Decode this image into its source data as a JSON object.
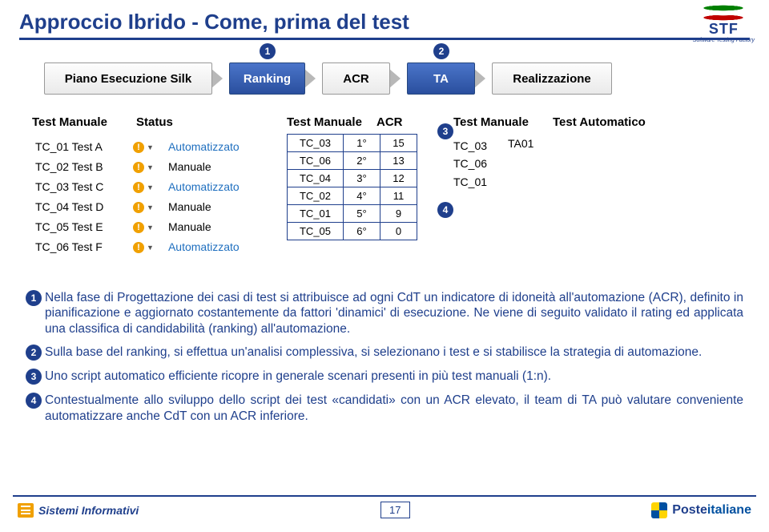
{
  "title": "Approccio Ibrido - Come, prima del test",
  "flow": {
    "silk": "Piano Esecuzione Silk",
    "ranking": "Ranking",
    "acr": "ACR",
    "ta": "TA",
    "real": "Realizzazione",
    "badge1": "1",
    "badge2": "2"
  },
  "col1": {
    "h1": "Test Manuale",
    "h2": "Status",
    "rows": [
      {
        "tc": "TC_01 Test A",
        "status": "Automatizzato",
        "auto": true
      },
      {
        "tc": "TC_02 Test B",
        "status": "Manuale",
        "auto": false
      },
      {
        "tc": "TC_03 Test C",
        "status": "Automatizzato",
        "auto": true
      },
      {
        "tc": "TC_04 Test D",
        "status": "Manuale",
        "auto": false
      },
      {
        "tc": "TC_05 Test E",
        "status": "Manuale",
        "auto": false
      },
      {
        "tc": "TC_06 Test F",
        "status": "Automatizzato",
        "auto": true
      }
    ]
  },
  "col2": {
    "h1": "Test Manuale",
    "h2": "ACR",
    "rows": [
      {
        "tc": "TC_03",
        "rank": "1°",
        "score": "15"
      },
      {
        "tc": "TC_06",
        "rank": "2°",
        "score": "13"
      },
      {
        "tc": "TC_04",
        "rank": "3°",
        "score": "12"
      },
      {
        "tc": "TC_02",
        "rank": "4°",
        "score": "11"
      },
      {
        "tc": "TC_01",
        "rank": "5°",
        "score": "9"
      },
      {
        "tc": "TC_05",
        "rank": "6°",
        "score": "0"
      }
    ],
    "badge3": "3",
    "badge4": "4"
  },
  "col3": {
    "h1": "Test Manuale",
    "h2": "Test Automatico",
    "manual": [
      "TC_03",
      "TC_06",
      "TC_01"
    ],
    "auto": "TA01"
  },
  "paras": [
    {
      "n": "1",
      "t": "Nella fase di Progettazione dei casi di test si attribuisce ad ogni CdT un indicatore di idoneità all'automazione (ACR), definito in pianificazione e aggiornato costantemente da fattori 'dinamici' di esecuzione. Ne viene di seguito validato il rating ed applicata una classifica di candidabilità (ranking) all'automazione."
    },
    {
      "n": "2",
      "t": "Sulla base del ranking, si effettua un'analisi complessiva, si selezionano i test e si stabilisce la strategia di automazione."
    },
    {
      "n": "3",
      "t": "Uno script automatico efficiente ricopre in generale scenari presenti in più test manuali (1:n)."
    },
    {
      "n": "4",
      "t": "Contestualmente allo sviluppo dello script dei test «candidati» con un ACR elevato, il team di TA può valutare conveniente automatizzare anche CdT con un ACR inferiore."
    }
  ],
  "footer": {
    "si": "Sistemi Informativi",
    "page": "17",
    "brand1": "Poste",
    "brand2": "italiane"
  },
  "stf": {
    "txt": "STF",
    "sub": "Software Testing Factory"
  }
}
